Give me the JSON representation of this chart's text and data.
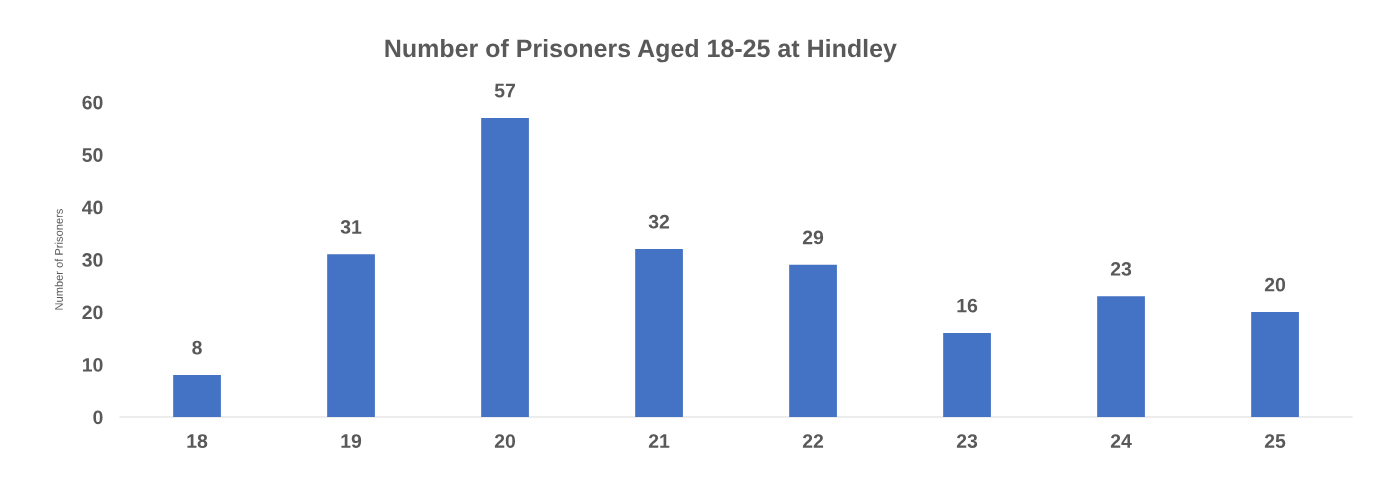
{
  "chart_data": {
    "type": "bar",
    "title": "Number of Prisoners Aged 18-25 at Hindley",
    "ylabel": "Number of Prisoners",
    "categories": [
      "18",
      "19",
      "20",
      "21",
      "22",
      "23",
      "24",
      "25"
    ],
    "values": [
      8,
      31,
      57,
      32,
      29,
      16,
      23,
      20
    ],
    "color": "#4472c4",
    "ylim": [
      0,
      60
    ],
    "yticks": [
      0,
      10,
      20,
      30,
      40,
      50,
      60
    ],
    "grid": false,
    "data_labels": true
  }
}
